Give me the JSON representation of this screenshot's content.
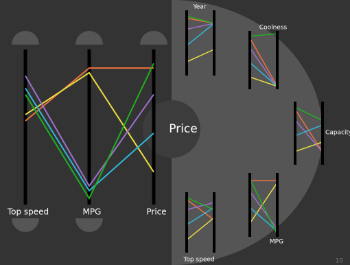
{
  "chart_data": {
    "type": "parallel",
    "dimensions": [
      "Year",
      "Coolness",
      "Capacity",
      "MPG",
      "Top speed",
      "Price"
    ],
    "series": [
      {
        "color": "#f07040",
        "values": [
          0.8,
          0.05,
          0.2,
          0.88,
          0.54,
          0.88
        ]
      },
      {
        "color": "#e8e040",
        "values": [
          0.4,
          0.05,
          0.36,
          0.85,
          0.58,
          0.21
        ]
      },
      {
        "color": "#a070d0",
        "values": [
          0.8,
          0.03,
          0.2,
          0.12,
          0.83,
          0.71
        ]
      },
      {
        "color": "#30b8d8",
        "values": [
          0.8,
          0.05,
          0.63,
          0.09,
          0.75,
          0.46
        ]
      },
      {
        "color": "#20b020",
        "values": [
          0.8,
          0.95,
          0.7,
          0.04,
          0.71,
          0.91
        ]
      }
    ],
    "ylim": [
      0,
      1
    ]
  },
  "page_number": "10"
}
